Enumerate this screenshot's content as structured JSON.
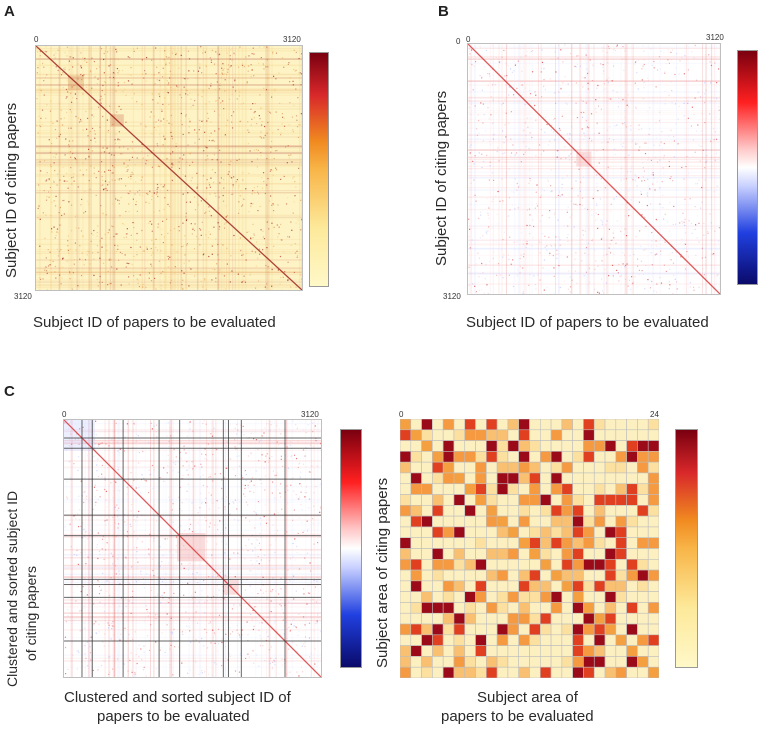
{
  "colors": {
    "heat_low": "#fff5c0",
    "heat_mid": "#f5a020",
    "heat_high": "#7a0010",
    "div_low": "#0a0a6a",
    "div_mid": "#ffffff",
    "div_high": "#7a0010"
  },
  "panels": {
    "a": {
      "label": "A"
    },
    "b": {
      "label": "B"
    },
    "c": {
      "label": "C"
    }
  },
  "chart_data": [
    {
      "id": "A",
      "type": "heatmap",
      "colormap": "yellow-orange-red",
      "x_tick_start": "0",
      "x_tick_end": "3120",
      "y_tick_end": "3120",
      "xlabel": "Subject ID of papers to be evaluated",
      "ylabel": "Subject ID of citing papers",
      "range": [
        0,
        3120
      ]
    },
    {
      "id": "B",
      "type": "heatmap",
      "colormap": "blue-white-red",
      "x_tick_start": "0",
      "x_tick_end": "3120",
      "y_tick_start": "0",
      "y_tick_end": "3120",
      "xlabel": "Subject ID of papers to be evaluated",
      "ylabel": "Subject ID of citing papers",
      "range": [
        0,
        3120
      ]
    },
    {
      "id": "C-left",
      "type": "heatmap",
      "colormap": "blue-white-red",
      "x_tick_start": "0",
      "x_tick_end": "3120",
      "xlabel_line1": "Clustered and sorted subject ID of",
      "xlabel_line2": "papers to be evaluated",
      "ylabel_line1": "Clustered and sorted subject ID",
      "ylabel_line2": "of citing papers",
      "range": [
        0,
        3120
      ]
    },
    {
      "id": "C-right",
      "type": "heatmap",
      "colormap": "yellow-orange-red",
      "x_tick_start": "0",
      "x_tick_end": "24",
      "xlabel_line1": "Subject area of",
      "xlabel_line2": "papers to be evaluated",
      "ylabel": "Subject area of citing papers",
      "n": 24
    }
  ]
}
